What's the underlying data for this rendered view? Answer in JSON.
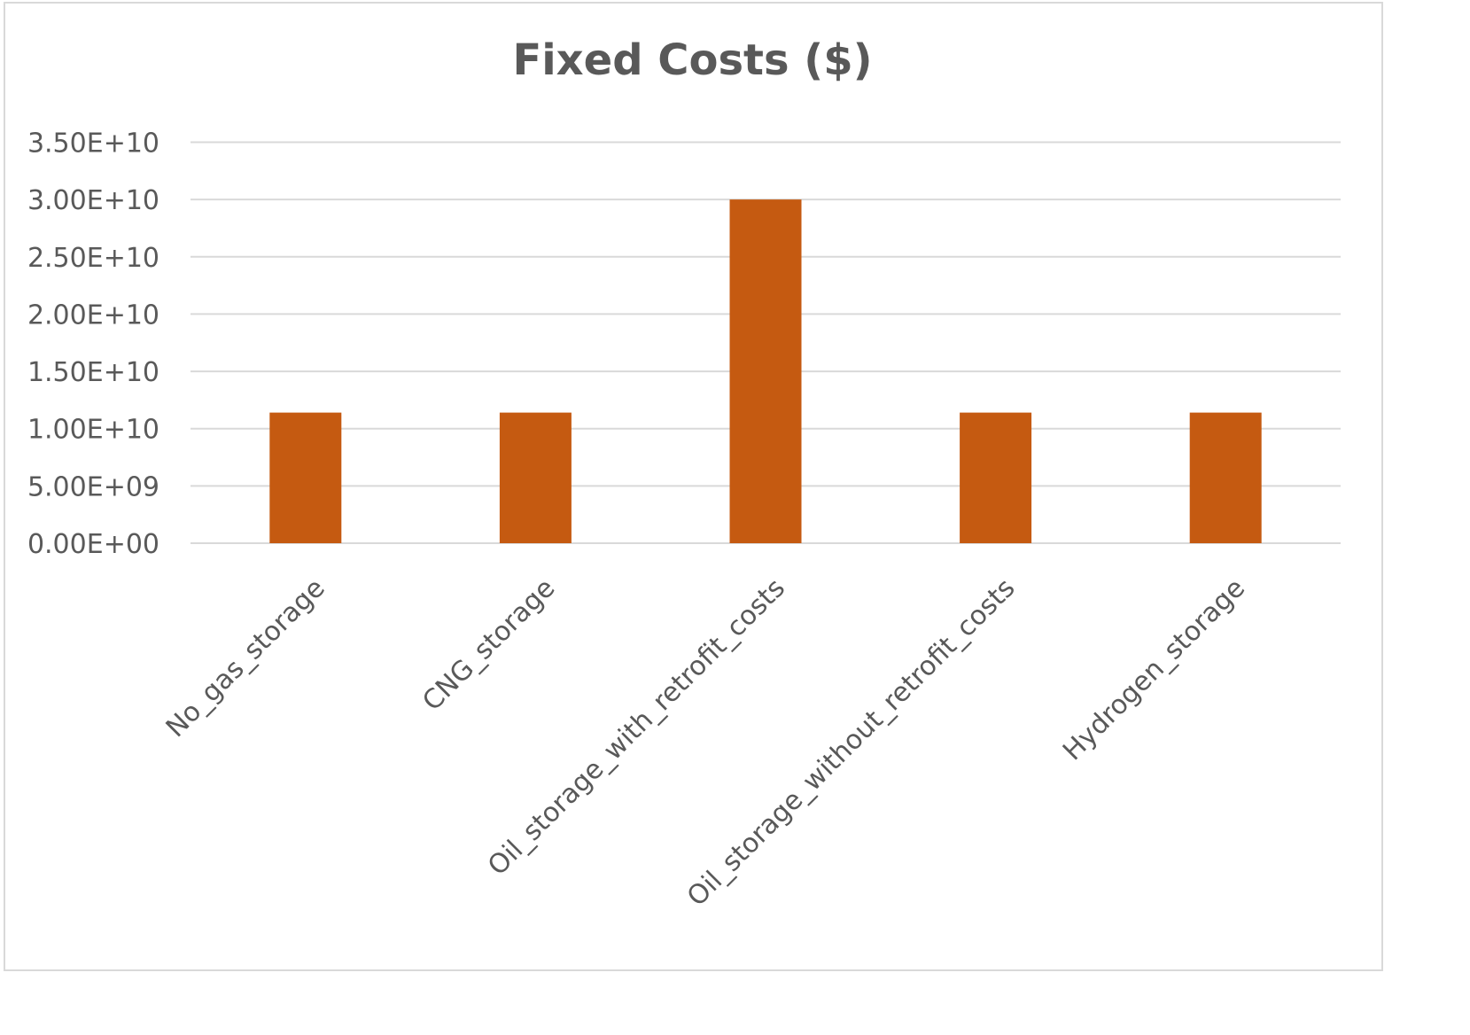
{
  "chart_data": {
    "type": "bar",
    "title": "Fixed Costs ($)",
    "xlabel": "",
    "ylabel": "",
    "categories": [
      "No_gas_storage",
      "CNG_storage",
      "Oil_storage_with_retrofit_costs",
      "Oil_storage_without_retrofit_costs",
      "Hydrogen_storage"
    ],
    "values": [
      11400000000,
      11400000000,
      30000000000,
      11400000000,
      11400000000
    ],
    "ylim": [
      0,
      35000000000
    ],
    "yticks": [
      0,
      5000000000,
      10000000000,
      15000000000,
      20000000000,
      25000000000,
      30000000000,
      35000000000
    ],
    "ytick_labels": [
      "0.00E+00",
      "5.00E+09",
      "1.00E+10",
      "1.50E+10",
      "2.00E+10",
      "2.50E+10",
      "3.00E+10",
      "3.50E+10"
    ],
    "grid": true,
    "legend": "none",
    "colors": {
      "bar": "#C55A11",
      "grid": "#d9d9d9",
      "text": "#595959"
    }
  }
}
